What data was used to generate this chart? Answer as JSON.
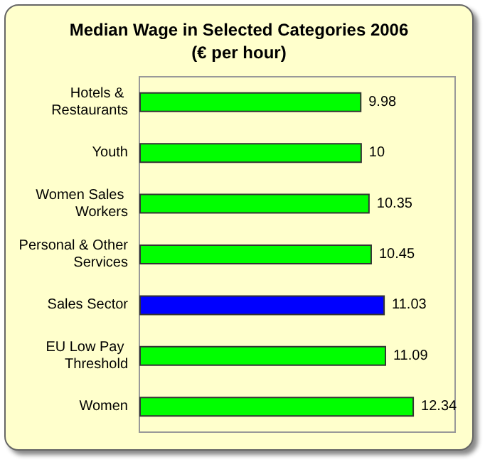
{
  "chart_data": {
    "type": "bar",
    "orientation": "horizontal",
    "title": "Median Wage in Selected Categories 2006",
    "subtitle": "(€ per hour)",
    "categories": [
      "Hotels & Restaurants",
      "Youth",
      "Women Sales Workers",
      "Personal & Other Services",
      "Sales Sector",
      "EU Low Pay Threshold",
      "Women"
    ],
    "values": [
      9.98,
      10,
      10.35,
      10.45,
      11.03,
      11.09,
      12.34
    ],
    "colors": [
      "#00ff00",
      "#00ff00",
      "#00ff00",
      "#00ff00",
      "#0000ff",
      "#00ff00",
      "#00ff00"
    ],
    "data_labels": true,
    "tick_labels": "y"
  }
}
